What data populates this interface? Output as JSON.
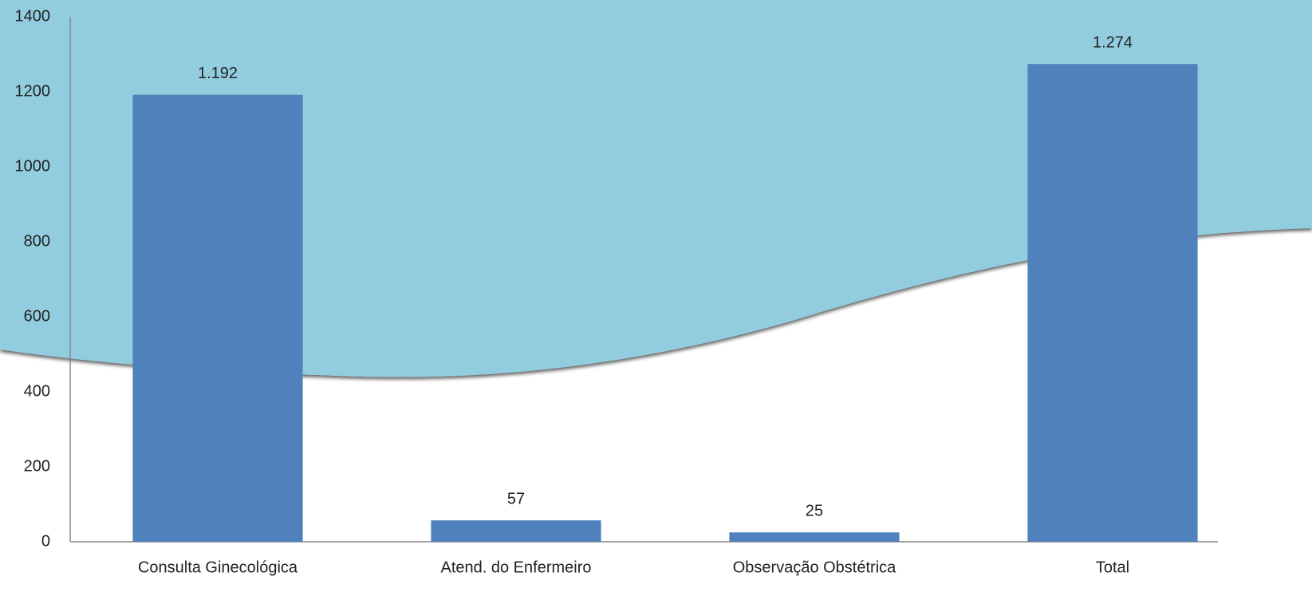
{
  "chart_data": {
    "type": "bar",
    "categories": [
      "Consulta Ginecológica",
      "Atend. do Enfermeiro",
      "Observação Obstétrica",
      "Total"
    ],
    "values": [
      1192,
      57,
      25,
      1274
    ],
    "value_labels": [
      "1.192",
      "57",
      "25",
      "1.274"
    ],
    "color": "#4f81bd",
    "ylim": [
      0,
      1400
    ],
    "yticks": [
      0,
      200,
      400,
      600,
      800,
      1000,
      1200,
      1400
    ],
    "grid": false
  }
}
